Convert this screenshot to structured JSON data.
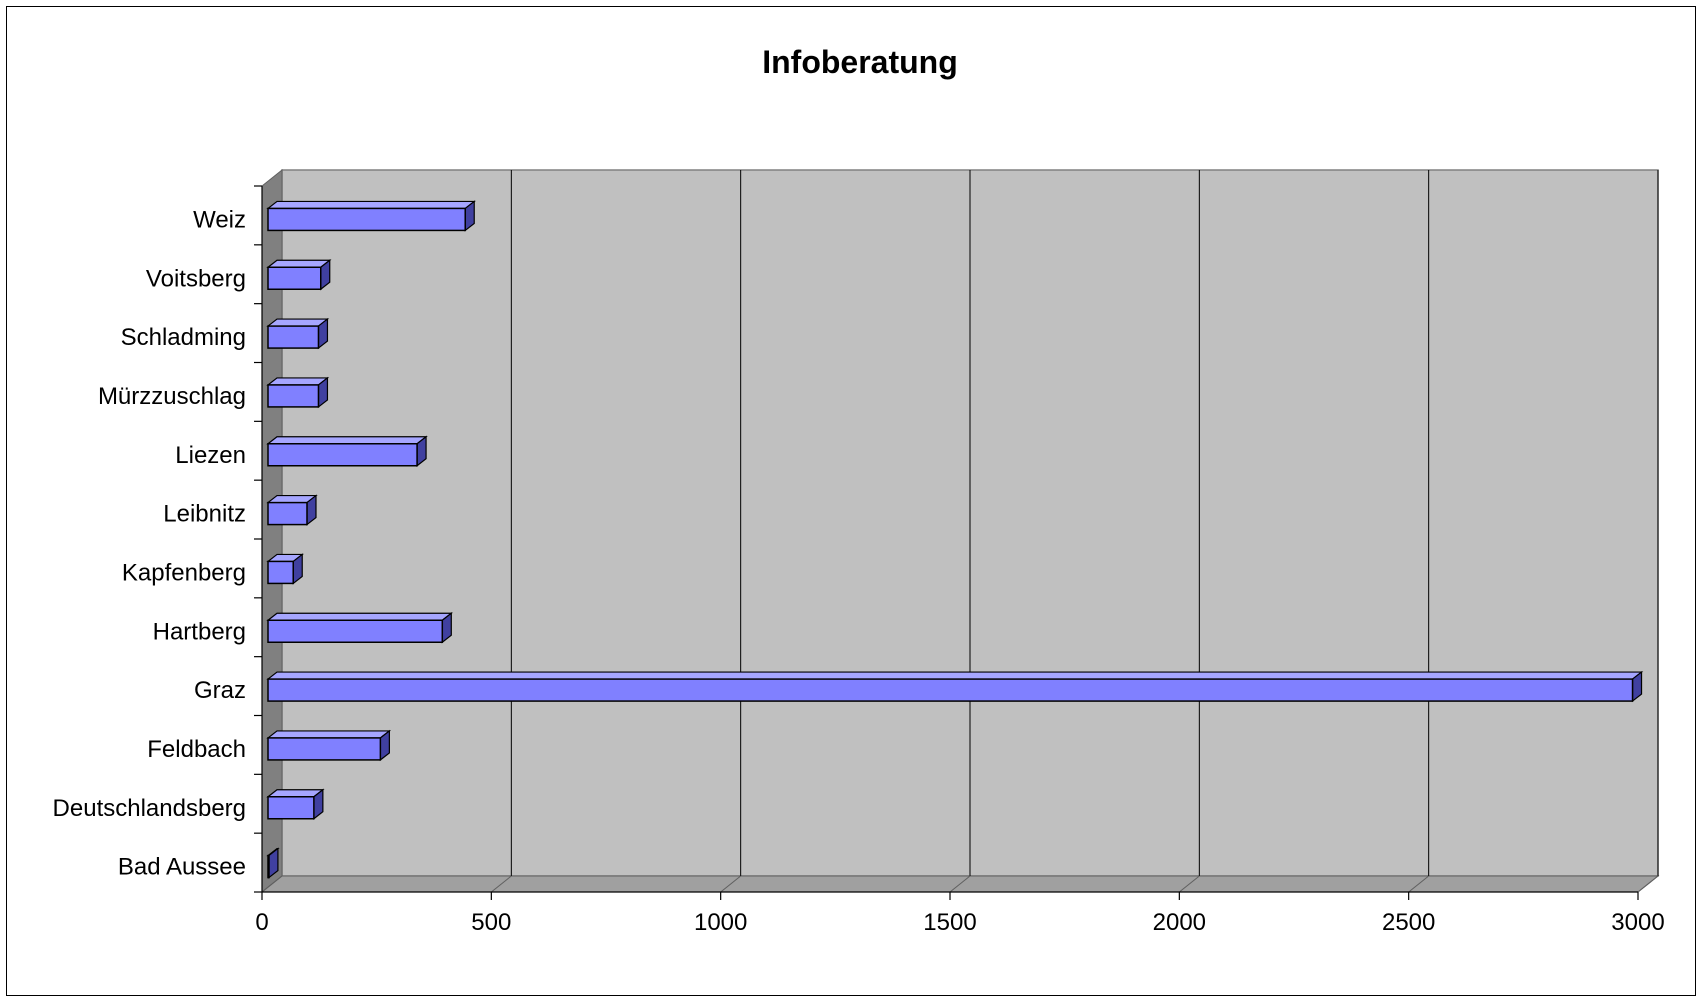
{
  "chart_data": {
    "type": "bar",
    "orientation": "horizontal",
    "title": "Infoberatung",
    "categories": [
      "Bad Aussee",
      "Deutschlandsberg",
      "Feldbach",
      "Graz",
      "Hartberg",
      "Kapfenberg",
      "Leibnitz",
      "Liezen",
      "Mürzzuschlag",
      "Schladming",
      "Voitsberg",
      "Weiz"
    ],
    "values": [
      2,
      100,
      245,
      2975,
      380,
      55,
      85,
      325,
      110,
      110,
      115,
      430
    ],
    "xlim": [
      0,
      3000
    ],
    "xticks": [
      "0",
      "500",
      "1000",
      "1500",
      "2000",
      "2500",
      "3000"
    ],
    "grid": true,
    "legend": "none",
    "colors": {
      "bar": "#8080FF",
      "bar_top": "#A6A6FF",
      "bar_side": "#4040A0",
      "plot_bg": "#C0C0C0",
      "side_wall": "#808080",
      "floor": "#A0A0A0"
    }
  }
}
